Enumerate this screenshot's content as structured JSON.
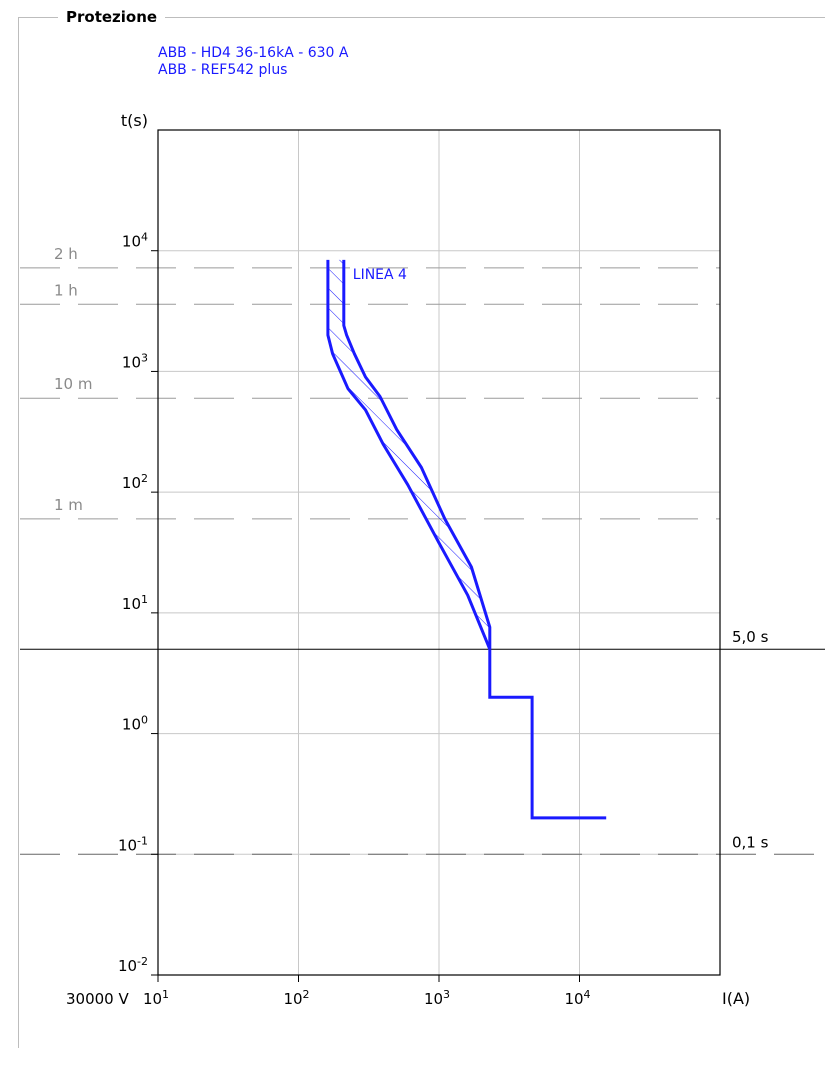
{
  "section": {
    "title": "Protezione"
  },
  "devices": [
    "ABB - HD4 36-16kA - 630 A",
    "ABB - REF542 plus"
  ],
  "voltage_label": "30000 V",
  "chart_data": {
    "type": "line",
    "scale": "log-log",
    "xlabel": "I(A)",
    "ylabel": "t(s)",
    "xlim": [
      10,
      100000
    ],
    "ylim": [
      0.01,
      100000
    ],
    "grid": true,
    "x_ticks": [
      {
        "value": 10,
        "base": "10",
        "exp": "1"
      },
      {
        "value": 100,
        "base": "10",
        "exp": "2"
      },
      {
        "value": 1000,
        "base": "10",
        "exp": "3"
      },
      {
        "value": 10000,
        "base": "10",
        "exp": "4"
      }
    ],
    "y_ticks": [
      {
        "value": 0.01,
        "base": "10",
        "exp": "-2"
      },
      {
        "value": 0.1,
        "base": "10",
        "exp": "-1"
      },
      {
        "value": 1,
        "base": "10",
        "exp": "0"
      },
      {
        "value": 10,
        "base": "10",
        "exp": "1"
      },
      {
        "value": 100,
        "base": "10",
        "exp": "2"
      },
      {
        "value": 1000,
        "base": "10",
        "exp": "3"
      },
      {
        "value": 10000,
        "base": "10",
        "exp": "4"
      }
    ],
    "time_references": [
      {
        "label": "2 h",
        "value": 7200
      },
      {
        "label": "1 h",
        "value": 3600
      },
      {
        "label": "10 m",
        "value": 600
      },
      {
        "label": "1 m",
        "value": 60
      }
    ],
    "reference_lines": [
      {
        "label": "5,0 s",
        "value": 5,
        "style": "solid"
      },
      {
        "label": "0,1 s",
        "value": 0.1,
        "style": "dashed"
      }
    ],
    "curve_label": "LINEA 4",
    "curve_color": "#1a1aff",
    "band": {
      "left": [
        [
          162,
          8400
        ],
        [
          162,
          2000
        ],
        [
          175,
          1400
        ],
        [
          225,
          720
        ],
        [
          300,
          480
        ],
        [
          400,
          250
        ],
        [
          600,
          115
        ],
        [
          1000,
          38
        ],
        [
          1600,
          14
        ],
        [
          2300,
          5
        ]
      ],
      "right": [
        [
          210,
          8400
        ],
        [
          210,
          2400
        ],
        [
          220,
          2000
        ],
        [
          250,
          1400
        ],
        [
          300,
          900
        ],
        [
          380,
          620
        ],
        [
          500,
          330
        ],
        [
          750,
          160
        ],
        [
          1100,
          60
        ],
        [
          1700,
          24
        ],
        [
          2300,
          7.6
        ],
        [
          2300,
          5
        ]
      ]
    },
    "step_curve": [
      [
        2300,
        5
      ],
      [
        2300,
        2
      ],
      [
        4600,
        2
      ],
      [
        4600,
        0.2
      ],
      [
        15500,
        0.2
      ]
    ]
  }
}
